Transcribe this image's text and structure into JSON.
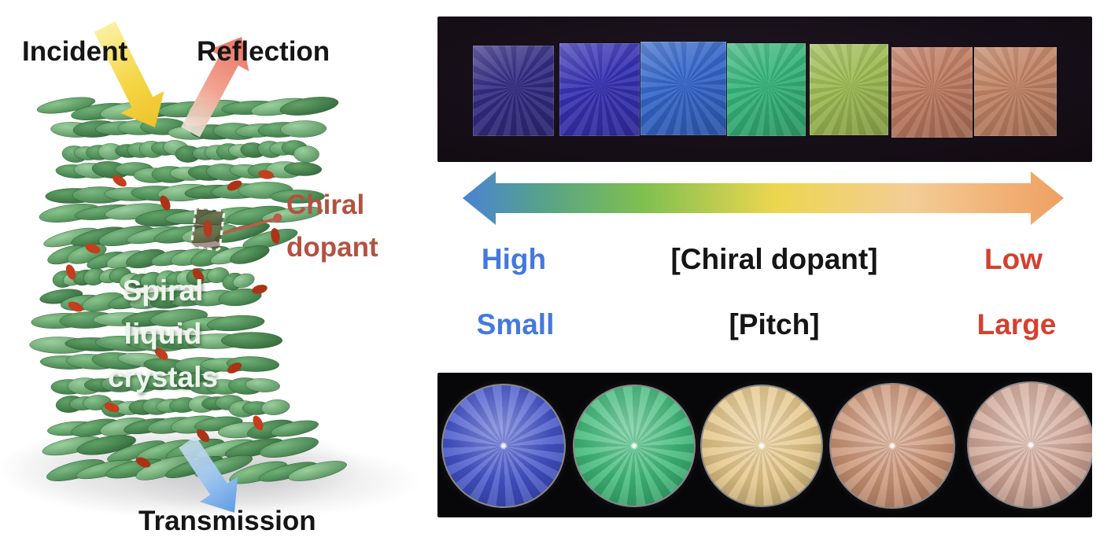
{
  "left": {
    "incident_label": "Incident",
    "reflection_label": "Reflection",
    "chiral_dopant_label": [
      "Chiral",
      "dopant"
    ],
    "spiral_label": [
      "Spiral",
      "liquid",
      "crystals"
    ],
    "transmission_label": "Transmission",
    "colors": {
      "label_black": "#151515",
      "chiral_text": "#b35240",
      "spiral_text": "#eef5ec",
      "incident_arrow": "#f5d645",
      "reflection_arrow": "#ee8472",
      "transmission_arrow": "#77ace8",
      "molecule_green": "#478a4d",
      "dopant_red": "#c43e1d"
    }
  },
  "right": {
    "top_photo": {
      "square_colors": [
        "#332b82",
        "#3730b2",
        "#3465c8",
        "#35b378",
        "#9cba52",
        "#bd7a60",
        "#c08263"
      ]
    },
    "gradient_arrow_stops": [
      "#4a82d8",
      "#55a18c",
      "#7fbf50",
      "#ecd64f",
      "#f3cd96",
      "#ef9f61"
    ],
    "labels": {
      "high": "High",
      "chiral_dopant": "[Chiral dopant]",
      "low": "Low",
      "small": "Small",
      "pitch": "[Pitch]",
      "large": "Large"
    },
    "label_colors": {
      "blue": "#4479dd",
      "red": "#d5402f",
      "black": "#151515"
    },
    "bottom_photo": {
      "disc_colors": [
        "#3a4bc8",
        "#34b571",
        "#e3c382",
        "#c98f6e",
        "#cfa392"
      ]
    }
  }
}
